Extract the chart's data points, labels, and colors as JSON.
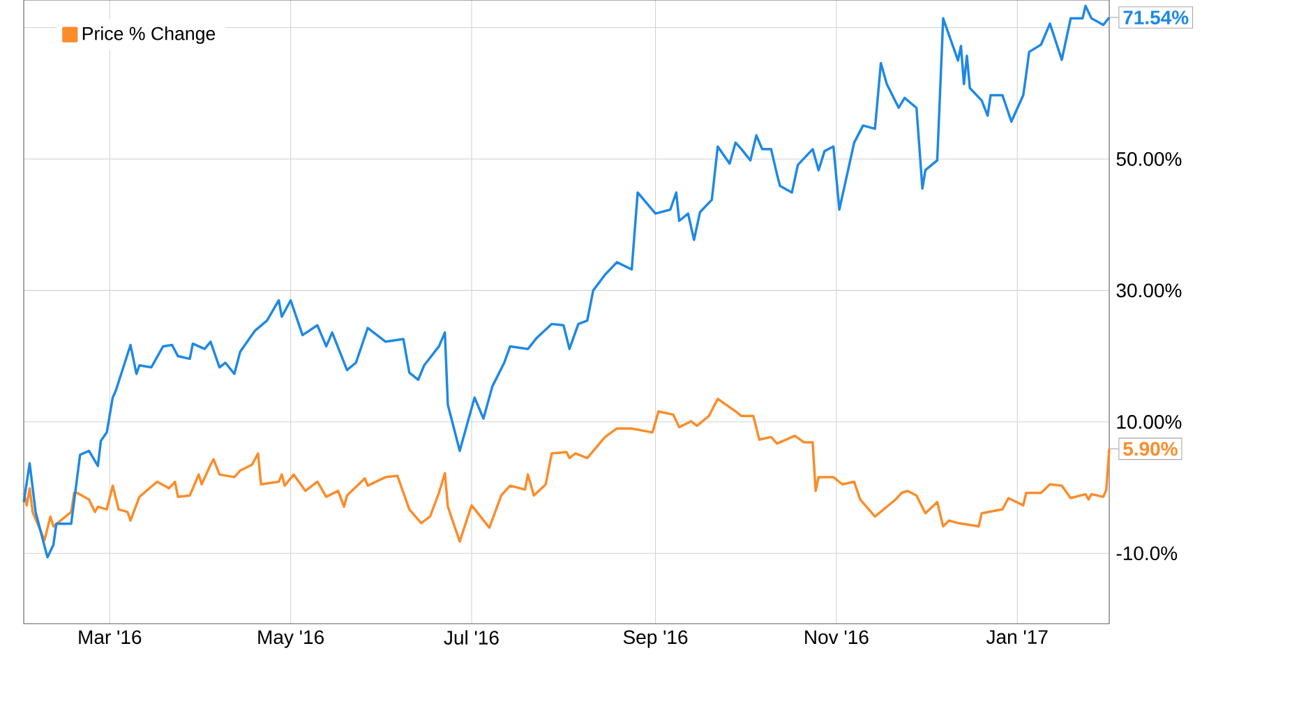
{
  "chart_data": {
    "type": "line",
    "xlim": [
      "2016-02-01",
      "2017-02-01"
    ],
    "xticks": [
      {
        "value": "2016-03-01",
        "label": "Mar '16"
      },
      {
        "value": "2016-05-01",
        "label": "May '16"
      },
      {
        "value": "2016-07-01",
        "label": "Jul '16"
      },
      {
        "value": "2016-09-01",
        "label": "Sep '16"
      },
      {
        "value": "2016-11-01",
        "label": "Nov '16"
      },
      {
        "value": "2017-01-01",
        "label": "Jan '17"
      }
    ],
    "ylim": [
      -20.7,
      74.2
    ],
    "yticks": [
      {
        "value": -10,
        "label": "-10.0%"
      },
      {
        "value": 10,
        "label": "10.00%"
      },
      {
        "value": 30,
        "label": "30.00%"
      },
      {
        "value": 50,
        "label": "50.00%"
      },
      {
        "value": 70,
        "label": null
      }
    ],
    "grid": true,
    "legend": "top left",
    "series": [
      {
        "color": "#1e88e5",
        "x": [
          "2016-02-01",
          "2016-02-03",
          "2016-02-05",
          "2016-02-09",
          "2016-02-11",
          "2016-02-12",
          "2016-02-17",
          "2016-02-20",
          "2016-02-23",
          "2016-02-26",
          "2016-02-27",
          "2016-02-29",
          "2016-03-02",
          "2016-03-03",
          "2016-03-08",
          "2016-03-10",
          "2016-03-11",
          "2016-03-15",
          "2016-03-19",
          "2016-03-22",
          "2016-03-24",
          "2016-03-28",
          "2016-03-29",
          "2016-04-02",
          "2016-04-04",
          "2016-04-07",
          "2016-04-09",
          "2016-04-12",
          "2016-04-14",
          "2016-04-19",
          "2016-04-23",
          "2016-04-27",
          "2016-04-28",
          "2016-05-01",
          "2016-05-05",
          "2016-05-10",
          "2016-05-13",
          "2016-05-15",
          "2016-05-20",
          "2016-05-23",
          "2016-05-27",
          "2016-06-02",
          "2016-06-08",
          "2016-06-10",
          "2016-06-13",
          "2016-06-15",
          "2016-06-20",
          "2016-06-22",
          "2016-06-23",
          "2016-06-27",
          "2016-07-02",
          "2016-07-05",
          "2016-07-08",
          "2016-07-12",
          "2016-07-14",
          "2016-07-20",
          "2016-07-23",
          "2016-07-28",
          "2016-08-01",
          "2016-08-03",
          "2016-08-06",
          "2016-08-09",
          "2016-08-11",
          "2016-08-15",
          "2016-08-19",
          "2016-08-24",
          "2016-08-26",
          "2016-09-01",
          "2016-09-06",
          "2016-09-08",
          "2016-09-09",
          "2016-09-12",
          "2016-09-14",
          "2016-09-16",
          "2016-09-20",
          "2016-09-22",
          "2016-09-26",
          "2016-09-28",
          "2016-09-30",
          "2016-10-03",
          "2016-10-05",
          "2016-10-07",
          "2016-10-10",
          "2016-10-12",
          "2016-10-13",
          "2016-10-17",
          "2016-10-19",
          "2016-10-24",
          "2016-10-26",
          "2016-10-28",
          "2016-10-31",
          "2016-11-02",
          "2016-11-07",
          "2016-11-10",
          "2016-11-14",
          "2016-11-16",
          "2016-11-18",
          "2016-11-22",
          "2016-11-24",
          "2016-11-28",
          "2016-11-30",
          "2016-12-01",
          "2016-12-05",
          "2016-12-07",
          "2016-12-12",
          "2016-12-13",
          "2016-12-14",
          "2016-12-15",
          "2016-12-16",
          "2016-12-20",
          "2016-12-22",
          "2016-12-23",
          "2016-12-27",
          "2016-12-30",
          "2017-01-03",
          "2017-01-04",
          "2017-01-05",
          "2017-01-09",
          "2017-01-12",
          "2017-01-16",
          "2017-01-19",
          "2017-01-23",
          "2017-01-24",
          "2017-01-26",
          "2017-01-30",
          "2017-02-01"
        ],
        "values": [
          -2.2,
          3.7,
          -3.7,
          -10.6,
          -8.7,
          -5.5,
          -5.5,
          5,
          5.6,
          3.3,
          7.1,
          8.4,
          13.7,
          14.7,
          21.7,
          17.3,
          18.6,
          18.3,
          21.5,
          21.7,
          20,
          19.6,
          21.9,
          21.1,
          22.2,
          18.3,
          19,
          17.3,
          20.7,
          23.9,
          25.4,
          28.5,
          26,
          28.5,
          23.2,
          24.7,
          21.5,
          23.6,
          17.9,
          19,
          24.3,
          22.2,
          22.6,
          17.5,
          16.4,
          18.6,
          21.5,
          23.6,
          12.6,
          5.6,
          13.7,
          10.5,
          15.4,
          19,
          21.5,
          21.1,
          22.8,
          24.9,
          24.7,
          21.1,
          24.9,
          25.4,
          30,
          32.4,
          34.3,
          33.2,
          44.9,
          41.7,
          42.3,
          44.9,
          40.6,
          41.7,
          37.7,
          41.9,
          43.8,
          51.9,
          49.3,
          52.5,
          51.5,
          49.8,
          53.6,
          51.5,
          51.5,
          47.6,
          45.9,
          44.9,
          49.1,
          51.5,
          48.3,
          51.2,
          51.9,
          42.3,
          52.5,
          55.1,
          54.6,
          64.6,
          61.4,
          57.8,
          59.3,
          57.8,
          45.5,
          48.3,
          49.8,
          71.4,
          65,
          67.2,
          61.4,
          65.7,
          60.8,
          58.9,
          56.6,
          59.7,
          59.7,
          55.7,
          59.7,
          62.9,
          66.3,
          67.4,
          70.6,
          65.1,
          71.4,
          71.4,
          73.3,
          71.4,
          70.4,
          71.54
        ]
      },
      {
        "name": "Price % Change",
        "color": "#fb8c2a",
        "x": [
          "2016-02-01",
          "2016-02-02",
          "2016-02-03",
          "2016-02-04",
          "2016-02-08",
          "2016-02-10",
          "2016-02-11",
          "2016-02-17",
          "2016-02-18",
          "2016-02-19",
          "2016-02-23",
          "2016-02-25",
          "2016-02-26",
          "2016-02-29",
          "2016-03-02",
          "2016-03-04",
          "2016-03-07",
          "2016-03-08",
          "2016-03-11",
          "2016-03-17",
          "2016-03-21",
          "2016-03-23",
          "2016-03-24",
          "2016-03-28",
          "2016-03-31",
          "2016-04-01",
          "2016-04-04",
          "2016-04-05",
          "2016-04-07",
          "2016-04-12",
          "2016-04-14",
          "2016-04-18",
          "2016-04-20",
          "2016-04-21",
          "2016-04-27",
          "2016-04-28",
          "2016-04-29",
          "2016-05-02",
          "2016-05-06",
          "2016-05-10",
          "2016-05-13",
          "2016-05-17",
          "2016-05-19",
          "2016-05-20",
          "2016-05-26",
          "2016-05-27",
          "2016-06-02",
          "2016-06-06",
          "2016-06-10",
          "2016-06-14",
          "2016-06-17",
          "2016-06-20",
          "2016-06-22",
          "2016-06-23",
          "2016-06-27",
          "2016-07-01",
          "2016-07-07",
          "2016-07-11",
          "2016-07-14",
          "2016-07-19",
          "2016-07-20",
          "2016-07-22",
          "2016-07-26",
          "2016-07-28",
          "2016-08-02",
          "2016-08-03",
          "2016-08-05",
          "2016-08-09",
          "2016-08-15",
          "2016-08-19",
          "2016-08-24",
          "2016-08-31",
          "2016-09-02",
          "2016-09-07",
          "2016-09-09",
          "2016-09-13",
          "2016-09-15",
          "2016-09-19",
          "2016-09-22",
          "2016-09-28",
          "2016-09-30",
          "2016-10-04",
          "2016-10-06",
          "2016-10-10",
          "2016-10-12",
          "2016-10-18",
          "2016-10-21",
          "2016-10-24",
          "2016-10-25",
          "2016-10-26",
          "2016-10-31",
          "2016-11-03",
          "2016-11-07",
          "2016-11-09",
          "2016-11-14",
          "2016-11-21",
          "2016-11-23",
          "2016-11-25",
          "2016-11-28",
          "2016-12-01",
          "2016-12-05",
          "2016-12-07",
          "2016-12-09",
          "2016-12-12",
          "2016-12-19",
          "2016-12-20",
          "2016-12-27",
          "2016-12-29",
          "2017-01-03",
          "2017-01-04",
          "2017-01-09",
          "2017-01-12",
          "2017-01-16",
          "2017-01-19",
          "2017-01-24",
          "2017-01-25",
          "2017-01-26",
          "2017-01-30",
          "2017-01-31",
          "2017-02-01"
        ],
        "values": [
          -0.8,
          -2.7,
          -0.1,
          -3.7,
          -8.0,
          -4.4,
          -5.9,
          -3.7,
          -0.8,
          -0.8,
          -1.8,
          -3.7,
          -2.9,
          -3.3,
          0.3,
          -3.3,
          -3.7,
          -5.0,
          -1.4,
          0.9,
          -0.1,
          0.9,
          -1.4,
          -1.2,
          2.0,
          0.5,
          3.5,
          4.3,
          2.0,
          1.6,
          2.6,
          3.5,
          5.2,
          0.5,
          0.9,
          2.0,
          0.3,
          2.0,
          -0.5,
          0.9,
          -1.4,
          -0.5,
          -2.9,
          -1.2,
          1.4,
          0.3,
          1.6,
          1.8,
          -3.3,
          -5.4,
          -4.4,
          -0.8,
          2.2,
          -2.9,
          -8.2,
          -2.7,
          -6.1,
          -1.2,
          0.3,
          -0.3,
          2.0,
          -1.2,
          0.5,
          5.2,
          5.4,
          4.5,
          5.2,
          4.5,
          7.7,
          9.0,
          9.0,
          8.4,
          11.6,
          11.1,
          9.2,
          10.1,
          9.4,
          10.9,
          13.5,
          11.6,
          10.9,
          10.9,
          7.3,
          7.7,
          6.7,
          7.9,
          6.9,
          6.9,
          -0.5,
          1.6,
          1.6,
          0.5,
          0.9,
          -1.8,
          -4.4,
          -1.8,
          -0.8,
          -0.5,
          -1.2,
          -3.9,
          -2.2,
          -5.9,
          -5.0,
          -5.4,
          -5.9,
          -3.9,
          -3.3,
          -1.6,
          -2.7,
          -0.8,
          -0.8,
          0.5,
          0.3,
          -1.6,
          -1.0,
          -1.8,
          -1.0,
          -1.4,
          -0.3,
          5.9
        ]
      }
    ],
    "annotations": [
      {
        "text": "71.54%",
        "x": "2017-02-01",
        "y": 71.54
      },
      {
        "text": "5.90%",
        "x": "2017-02-01",
        "y": 5.9
      }
    ]
  }
}
